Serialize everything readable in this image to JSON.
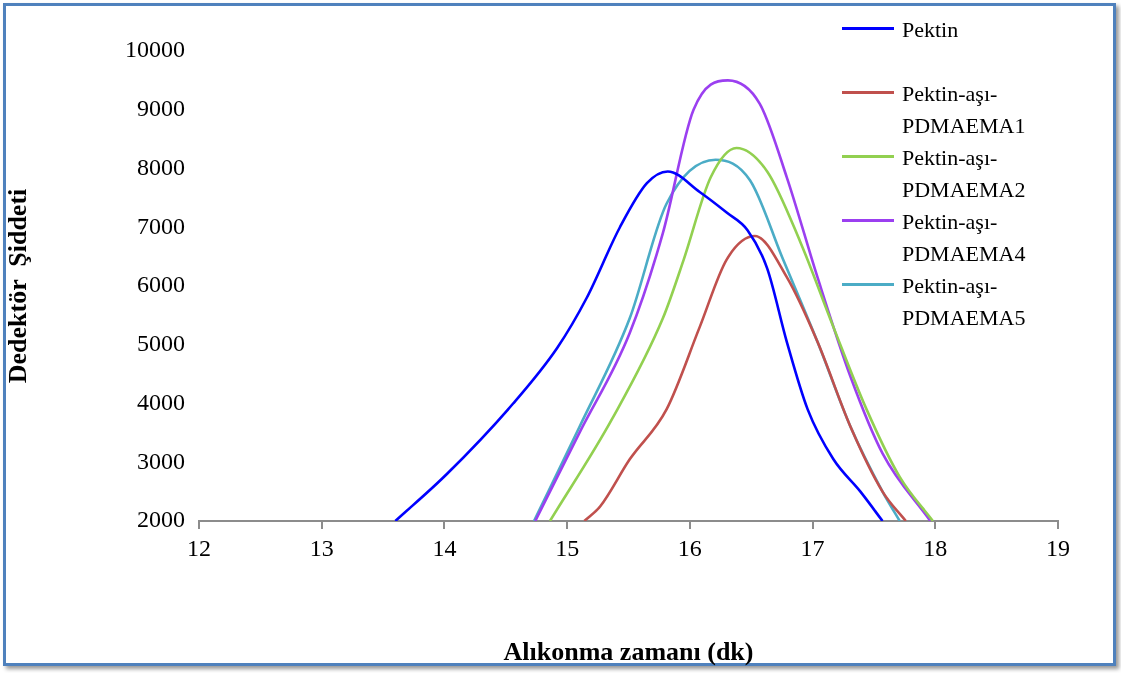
{
  "chart_data": {
    "type": "line",
    "xlabel": "Alıkonma zamanı (dk)",
    "ylabel": "Dedektör  Şiddeti",
    "xlim": [
      12,
      19
    ],
    "xticks": [
      12,
      13,
      14,
      15,
      16,
      17,
      18,
      19
    ],
    "ylim": [
      2000,
      10000
    ],
    "yticks": [
      2000,
      3000,
      4000,
      5000,
      6000,
      7000,
      8000,
      9000,
      10000
    ],
    "marker": "none",
    "legend": "top right",
    "series": [
      {
        "name": "Pektin",
        "color": "#0000ff",
        "x": [
          13.6,
          14.02,
          14.56,
          14.92,
          15.16,
          15.43,
          15.65,
          15.82,
          16.08,
          16.3,
          16.47,
          16.63,
          16.79,
          16.96,
          17.17,
          17.39,
          17.57
        ],
        "values": [
          2000,
          2800,
          4000,
          4950,
          5800,
          7000,
          7750,
          7950,
          7600,
          7250,
          6950,
          6300,
          5050,
          3900,
          3050,
          2500,
          2000
        ]
      },
      {
        "name": "Pektin-aşı-PDMAEMA1",
        "color": "#c0504d",
        "x": [
          15.14,
          15.27,
          15.51,
          15.81,
          16.08,
          16.3,
          16.53,
          16.79,
          17.04,
          17.31,
          17.57,
          17.76
        ],
        "values": [
          2000,
          2250,
          3050,
          3900,
          5300,
          6450,
          6850,
          6150,
          5050,
          3600,
          2500,
          2000
        ]
      },
      {
        "name": "Pektin-aşı-PDMAEMA2",
        "color": "#92d050",
        "x": [
          14.86,
          15.37,
          15.78,
          15.95,
          16.17,
          16.38,
          16.63,
          16.9,
          17.17,
          17.44,
          17.71,
          17.98
        ],
        "values": [
          2000,
          3750,
          5450,
          6450,
          7850,
          8350,
          7950,
          6750,
          5300,
          3900,
          2750,
          2000
        ]
      },
      {
        "name": "Pektin-aşı-PDMAEMA4",
        "color": "#9b3ff0",
        "x": [
          14.74,
          15.1,
          15.51,
          15.78,
          16.03,
          16.31,
          16.57,
          16.79,
          17.04,
          17.31,
          17.57,
          17.96
        ],
        "values": [
          2000,
          3500,
          5200,
          6900,
          9000,
          9500,
          9100,
          7850,
          6150,
          4450,
          3150,
          2000
        ]
      },
      {
        "name": "Pektin-aşı-PDMAEMA5",
        "color": "#4bacc6",
        "x": [
          14.73,
          15.1,
          15.51,
          15.81,
          16.21,
          16.49,
          16.76,
          17.04,
          17.31,
          17.57,
          17.71
        ],
        "values": [
          2000,
          3600,
          5450,
          7400,
          8150,
          7800,
          6450,
          5050,
          3600,
          2500,
          2000
        ]
      }
    ]
  }
}
